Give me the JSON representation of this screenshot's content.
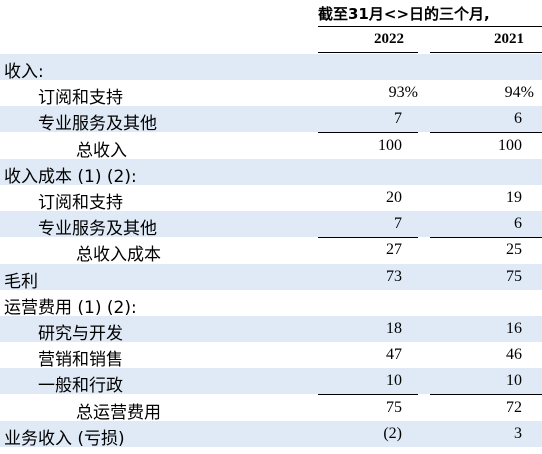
{
  "header": {
    "period": "截至31月<>日的三个月,",
    "years": [
      "2022",
      "2021"
    ]
  },
  "rows": [
    {
      "label": "收入:",
      "indent": 0,
      "v1": "",
      "v2": "",
      "shaded": true
    },
    {
      "label": "订阅和支持",
      "indent": 2,
      "v1": "93%",
      "v2": "94%",
      "shaded": false
    },
    {
      "label": "专业服务及其他",
      "indent": 2,
      "v1": "7",
      "v2": "6",
      "shaded": true
    },
    {
      "label": "总收入",
      "indent": 4,
      "v1": "100",
      "v2": "100",
      "shaded": false
    },
    {
      "label": "收入成本 (1) (2):",
      "indent": 0,
      "v1": "",
      "v2": "",
      "shaded": true
    },
    {
      "label": "订阅和支持",
      "indent": 2,
      "v1": "20",
      "v2": "19",
      "shaded": false
    },
    {
      "label": "专业服务及其他",
      "indent": 2,
      "v1": "7",
      "v2": "6",
      "shaded": true
    },
    {
      "label": "总收入成本",
      "indent": 4,
      "v1": "27",
      "v2": "25",
      "shaded": false
    },
    {
      "label": "毛利",
      "indent": 0,
      "v1": "73",
      "v2": "75",
      "shaded": true
    },
    {
      "label": "运营费用 (1) (2):",
      "indent": 0,
      "v1": "",
      "v2": "",
      "shaded": false
    },
    {
      "label": "研究与开发",
      "indent": 2,
      "v1": "18",
      "v2": "16",
      "shaded": true
    },
    {
      "label": "营销和销售",
      "indent": 2,
      "v1": "47",
      "v2": "46",
      "shaded": false
    },
    {
      "label": "一般和行政",
      "indent": 2,
      "v1": "10",
      "v2": "10",
      "shaded": true
    },
    {
      "label": "总运营费用",
      "indent": 4,
      "v1": "75",
      "v2": "72",
      "shaded": false
    },
    {
      "label": "业务收入 (亏损)",
      "indent": 0,
      "v1": "(2)",
      "v2": "3",
      "shaded": true
    }
  ]
}
